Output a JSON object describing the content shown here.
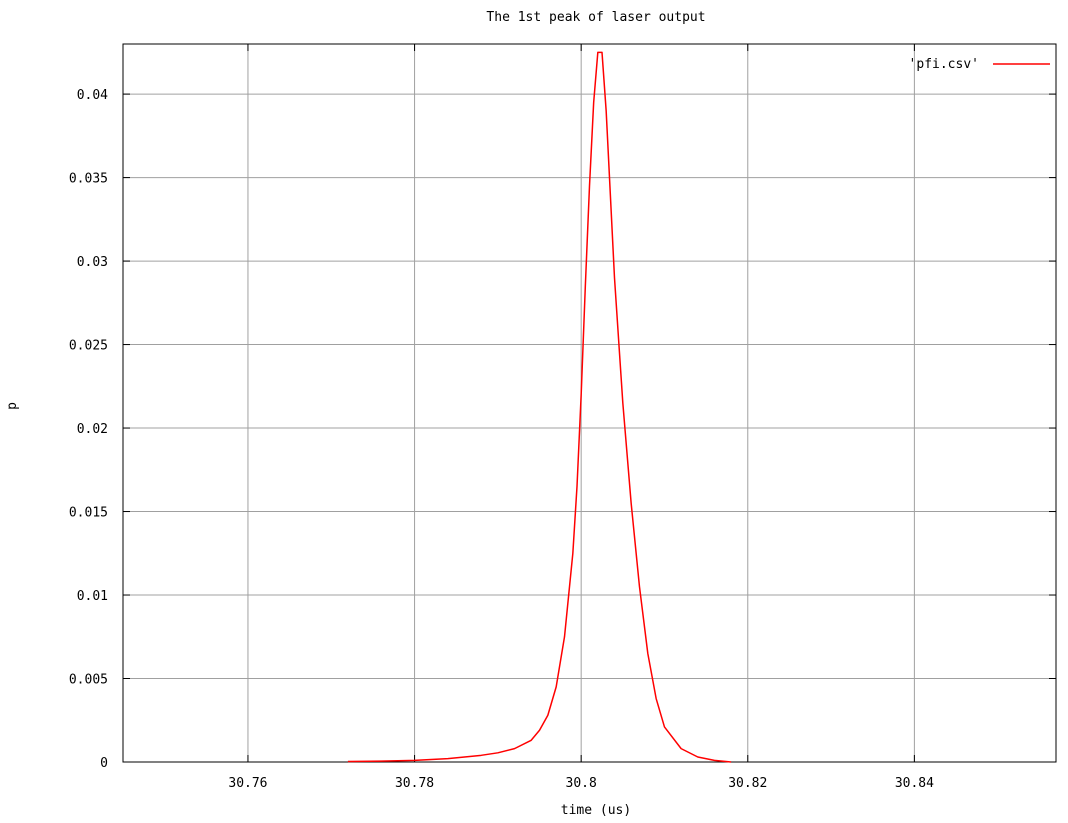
{
  "chart_data": {
    "type": "line",
    "title": "The 1st peak of laser output",
    "xlabel": "time (us)",
    "ylabel": "p",
    "xlim": [
      30.745,
      30.857
    ],
    "ylim": [
      0,
      0.043
    ],
    "grid": true,
    "legend_position": "top-right",
    "x_ticks": [
      30.76,
      30.78,
      30.8,
      30.82,
      30.84
    ],
    "x_tick_labels": [
      "30.76",
      "30.78",
      "30.8",
      "30.82",
      "30.84"
    ],
    "y_ticks": [
      0,
      0.005,
      0.01,
      0.015,
      0.02,
      0.025,
      0.03,
      0.035,
      0.04
    ],
    "y_tick_labels": [
      "0",
      "0.005",
      "0.01",
      "0.015",
      "0.02",
      "0.025",
      "0.03",
      "0.035",
      "0.04"
    ],
    "series": [
      {
        "name": "'pfi.csv'",
        "color": "#ff0000",
        "x": [
          30.772,
          30.776,
          30.78,
          30.784,
          30.788,
          30.79,
          30.792,
          30.794,
          30.795,
          30.796,
          30.797,
          30.798,
          30.799,
          30.7995,
          30.8,
          30.8005,
          30.801,
          30.8015,
          30.802,
          30.8025,
          30.803,
          30.8035,
          30.804,
          30.805,
          30.806,
          30.807,
          30.808,
          30.809,
          30.81,
          30.812,
          30.814,
          30.816,
          30.818
        ],
        "y": [
          3e-05,
          5e-05,
          0.0001,
          0.0002,
          0.0004,
          0.00055,
          0.0008,
          0.0013,
          0.0019,
          0.0028,
          0.0045,
          0.0075,
          0.0125,
          0.0165,
          0.022,
          0.0285,
          0.0345,
          0.0395,
          0.0425,
          0.0425,
          0.039,
          0.034,
          0.029,
          0.0215,
          0.0155,
          0.0105,
          0.0065,
          0.0038,
          0.0021,
          0.0008,
          0.0003,
          0.0001,
          0.0
        ]
      }
    ]
  }
}
